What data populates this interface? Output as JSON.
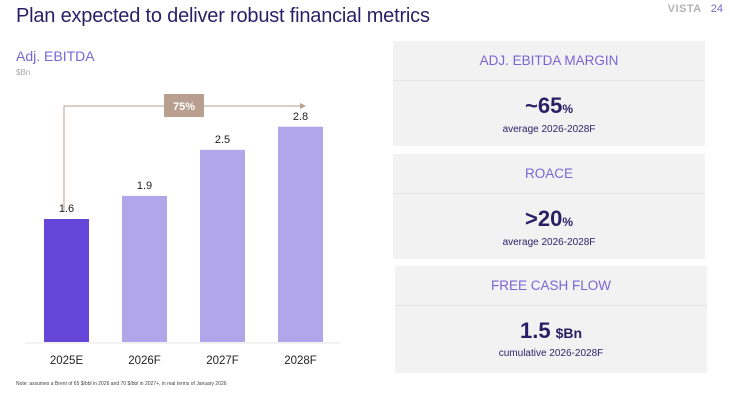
{
  "header": {
    "title": "Plan expected to deliver robust financial metrics",
    "brand": "VISTA",
    "page_number": "24"
  },
  "chart_section": {
    "title": "Adj. EBITDA",
    "unit": "$Bn",
    "growth_label": "75%"
  },
  "chart_data": {
    "type": "bar",
    "title": "Adj. EBITDA",
    "ylabel": "$Bn",
    "xlabel": "",
    "categories": [
      "2025E",
      "2026F",
      "2027F",
      "2028F"
    ],
    "values": [
      1.6,
      1.9,
      2.5,
      2.8
    ],
    "data_labels": [
      "1.6",
      "1.9",
      "2.5",
      "2.8"
    ],
    "highlight_index": 0,
    "colors": {
      "highlight": "#6546d8",
      "default": "#b1a6ea",
      "annotation": "#b89f90"
    },
    "ylim": [
      0,
      3.2
    ],
    "grid": false,
    "legend": "none",
    "annotation": {
      "label": "75%",
      "from": "2025E",
      "to": "2028F"
    }
  },
  "metrics": [
    {
      "title": "ADJ. EBITDA MARGIN",
      "value": "~65",
      "suffix": "%",
      "subtitle": "average 2026-2028F"
    },
    {
      "title": "ROACE",
      "value": ">20",
      "suffix": "%",
      "subtitle": "average 2026-2028F"
    },
    {
      "title": "FREE CASH FLOW",
      "value": "1.5",
      "suffix": "$Bn",
      "subtitle": "cumulative 2026-2028F"
    }
  ],
  "footnote": "Note: assumes a Brent of 65 $/bbl in 2026 and 70 $/bbl in 2027+, in real terms of January 2026"
}
